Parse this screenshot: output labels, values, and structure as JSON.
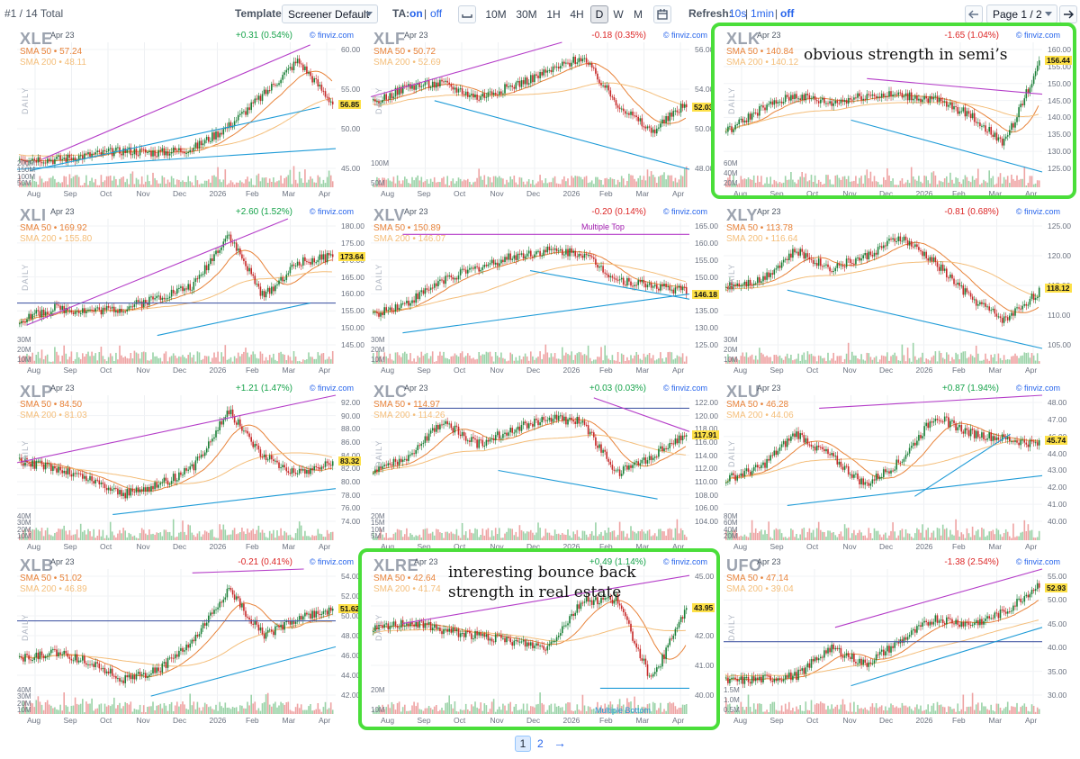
{
  "toolbar": {
    "count": "#1 / 14 Total",
    "template_label": "Template:",
    "template_value": "Screener Default",
    "ta_label": "TA:",
    "ta_on": "on",
    "ta_sep": "|",
    "ta_off": "off",
    "timeframes": [
      "10M",
      "30M",
      "1H",
      "4H",
      "D",
      "W",
      "M"
    ],
    "timeframe_active": "D",
    "refresh_label": "Refresh:",
    "refresh_10s": "10s",
    "refresh_1min": "1min",
    "refresh_off": "off",
    "page_select": "Page 1 / 2"
  },
  "months": [
    "Aug",
    "Sep",
    "Oct",
    "Nov",
    "Dec",
    "2026",
    "Feb",
    "Mar",
    "Apr"
  ],
  "daily_label": "DAILY",
  "source": "© finviz.com",
  "charts": [
    {
      "ticker": "XLE",
      "date": "Apr 23",
      "change": "+0.31 (0.54%)",
      "dir": "up",
      "sma50": "SMA 50 • 57.24",
      "sma200": "SMA 200 • 48.11",
      "price": "56.85",
      "yticks": [
        "60.00",
        "55.00",
        "50.00",
        "45.00"
      ],
      "vol": [
        "200M",
        "150M",
        "100M",
        "50M"
      ]
    },
    {
      "ticker": "XLF",
      "date": "Apr 23",
      "change": "-0.18 (0.35%)",
      "dir": "down",
      "sma50": "SMA 50 • 50.72",
      "sma200": "SMA 200 • 52.69",
      "price": "52.03",
      "yticks": [
        "56.00",
        "54.00",
        "50.00",
        "48.00"
      ],
      "vol": [
        "100M",
        "50M"
      ]
    },
    {
      "ticker": "XLK",
      "date": "Apr 23",
      "change": "-1.65 (1.04%)",
      "dir": "down",
      "sma50": "SMA 50 • 140.84",
      "sma200": "SMA 200 • 140.12",
      "price": "156.44",
      "yticks": [
        "160.00",
        "155.00",
        "150.00",
        "145.00",
        "140.00",
        "135.00",
        "130.00",
        "125.00"
      ],
      "vol": [
        "60M",
        "40M",
        "20M"
      ]
    },
    {
      "ticker": "XLI",
      "date": "Apr 23",
      "change": "+2.60 (1.52%)",
      "dir": "up",
      "sma50": "SMA 50 • 169.92",
      "sma200": "SMA 200 • 155.80",
      "price": "173.64",
      "yticks": [
        "180.00",
        "175.00",
        "170.00",
        "165.00",
        "160.00",
        "155.00",
        "150.00",
        "145.00"
      ],
      "vol": [
        "30M",
        "20M",
        "10M"
      ]
    },
    {
      "ticker": "XLV",
      "date": "Apr 23",
      "change": "-0.20 (0.14%)",
      "dir": "down",
      "sma50": "SMA 50 • 150.89",
      "sma200": "SMA 200 • 146.07",
      "price": "146.18",
      "yticks": [
        "165.00",
        "160.00",
        "155.00",
        "150.00",
        "140.00",
        "135.00",
        "130.00",
        "125.00"
      ],
      "vol": [
        "30M",
        "20M",
        "10M"
      ]
    },
    {
      "ticker": "XLY",
      "date": "Apr 23",
      "change": "-0.81 (0.68%)",
      "dir": "down",
      "sma50": "SMA 50 • 113.78",
      "sma200": "SMA 200 • 116.64",
      "price": "118.12",
      "yticks": [
        "125.00",
        "120.00",
        "115.00",
        "110.00",
        "105.00"
      ],
      "vol": [
        "30M",
        "20M",
        "10M"
      ]
    },
    {
      "ticker": "XLP",
      "date": "Apr 23",
      "change": "+1.21 (1.47%)",
      "dir": "up",
      "sma50": "SMA 50 • 84.50",
      "sma200": "SMA 200 • 81.03",
      "price": "83.32",
      "yticks": [
        "92.00",
        "90.00",
        "88.00",
        "86.00",
        "84.00",
        "82.00",
        "80.00",
        "78.00",
        "76.00",
        "74.00"
      ],
      "vol": [
        "40M",
        "30M",
        "20M",
        "10M"
      ]
    },
    {
      "ticker": "XLC",
      "date": "Apr 23",
      "change": "+0.03 (0.03%)",
      "dir": "up",
      "sma50": "SMA 50 • 114.97",
      "sma200": "SMA 200 • 114.26",
      "price": "117.91",
      "yticks": [
        "122.00",
        "120.00",
        "118.00",
        "116.00",
        "114.00",
        "112.00",
        "110.00",
        "108.00",
        "106.00",
        "104.00"
      ],
      "vol": [
        "20M",
        "15M",
        "10M",
        "5M"
      ]
    },
    {
      "ticker": "XLU",
      "date": "Apr 23",
      "change": "+0.87 (1.94%)",
      "dir": "up",
      "sma50": "SMA 50 • 46.28",
      "sma200": "SMA 200 • 44.06",
      "price": "45.74",
      "yticks": [
        "48.00",
        "47.00",
        "46.00",
        "44.00",
        "43.00",
        "42.00",
        "41.00",
        "40.00"
      ],
      "vol": [
        "80M",
        "60M",
        "40M",
        "20M"
      ]
    },
    {
      "ticker": "XLB",
      "date": "Apr 23",
      "change": "-0.21 (0.41%)",
      "dir": "down",
      "sma50": "SMA 50 • 51.02",
      "sma200": "SMA 200 • 46.89",
      "price": "51.62",
      "yticks": [
        "54.00",
        "52.00",
        "50.00",
        "48.00",
        "46.00",
        "44.00",
        "42.00"
      ],
      "vol": [
        "40M",
        "30M",
        "20M",
        "10M"
      ]
    },
    {
      "ticker": "XLRE",
      "date": "Apr 23",
      "change": "+0.49 (1.14%)",
      "dir": "up",
      "sma50": "SMA 50 • 42.64",
      "sma200": "SMA 200 • 41.74",
      "price": "43.95",
      "yticks": [
        "45.00",
        "44.00",
        "42.00",
        "41.00",
        "40.00"
      ],
      "vol": [
        "20M",
        "10M"
      ]
    },
    {
      "ticker": "UFO",
      "date": "Apr 23",
      "change": "-1.38 (2.54%)",
      "dir": "down",
      "sma50": "SMA 50 • 47.14",
      "sma200": "SMA 200 • 39.04",
      "price": "52.93",
      "yticks": [
        "55.00",
        "50.00",
        "45.00",
        "40.00",
        "35.00",
        "30.00"
      ],
      "vol": [
        "1.5M",
        "1.0M",
        "0.5M"
      ]
    }
  ],
  "patterns": {
    "xlv": "Multiple Top",
    "xlre": "Multiple Bottom"
  },
  "annotations": {
    "xlk": "obvious strength in semi’s",
    "xlre_line1": "interesting bounce back",
    "xlre_line2": "strength in real estate"
  },
  "pagination": {
    "page1": "1",
    "page2": "2",
    "next": "→"
  },
  "colors": {
    "up": "#16a34a",
    "down": "#dc2626",
    "sma50": "#e8833a",
    "sma200": "#f4be7a",
    "trend_purple": "#b43cc8",
    "trend_blue": "#1e9bd7",
    "highlight": "#4ade3a",
    "price_tag": "#fde047"
  }
}
